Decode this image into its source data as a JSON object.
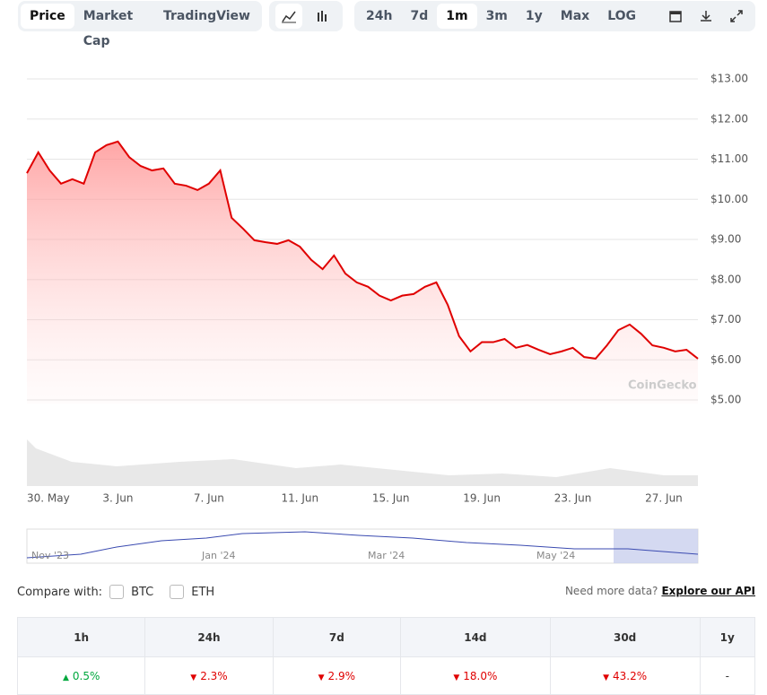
{
  "toolbar": {
    "views": [
      "Price",
      "Market Cap",
      "TradingView"
    ],
    "active_view": 0,
    "ranges": [
      "24h",
      "7d",
      "1m",
      "3m",
      "1y",
      "Max",
      "LOG"
    ],
    "active_range": 2
  },
  "chart_data": {
    "type": "line",
    "watermark": "CoinGecko",
    "categories": [
      "30. May",
      null,
      null,
      null,
      null,
      null,
      null,
      null,
      "3. Jun",
      null,
      null,
      null,
      null,
      null,
      null,
      null,
      "7. Jun",
      null,
      null,
      null,
      null,
      null,
      null,
      null,
      "11. Jun",
      null,
      null,
      null,
      null,
      null,
      null,
      null,
      "15. Jun",
      null,
      null,
      null,
      null,
      null,
      null,
      null,
      "19. Jun",
      null,
      null,
      null,
      null,
      null,
      null,
      null,
      "23. Jun",
      null,
      null,
      null,
      null,
      null,
      null,
      null,
      "27. Jun",
      null,
      null,
      null
    ],
    "values": [
      10.65,
      11.17,
      10.72,
      10.39,
      10.5,
      10.39,
      11.17,
      11.35,
      11.44,
      11.05,
      10.83,
      10.72,
      10.77,
      10.39,
      10.34,
      10.23,
      10.39,
      10.72,
      9.54,
      9.27,
      8.98,
      8.93,
      8.89,
      8.98,
      8.82,
      8.49,
      8.26,
      8.6,
      8.15,
      7.93,
      7.82,
      7.6,
      7.48,
      7.6,
      7.64,
      7.82,
      7.93,
      7.37,
      6.59,
      6.21,
      6.44,
      6.44,
      6.52,
      6.3,
      6.37,
      6.25,
      6.14,
      6.21,
      6.3,
      6.07,
      6.03,
      6.36,
      6.74,
      6.88,
      6.65,
      6.36,
      6.3,
      6.21,
      6.25,
      6.03
    ],
    "color": "#e00000",
    "ylim": [
      5,
      13
    ],
    "yticks": [
      {
        "value": 5,
        "label": "$5.00"
      },
      {
        "value": 6,
        "label": "$6.00"
      },
      {
        "value": 7,
        "label": "$7.00"
      },
      {
        "value": 8,
        "label": "$8.00"
      },
      {
        "value": 9,
        "label": "$9.00"
      },
      {
        "value": 10,
        "label": "$10.00"
      },
      {
        "value": 11,
        "label": "$11.00"
      },
      {
        "value": 12,
        "label": "$12.00"
      },
      {
        "value": 13,
        "label": "$13.00"
      }
    ],
    "grid": true
  },
  "navigator": {
    "labels": [
      "Nov '23",
      "Jan '24",
      "Mar '24",
      "May '24"
    ]
  },
  "compare": {
    "label": "Compare with:",
    "options": [
      "BTC",
      "ETH"
    ],
    "more": "Need more data?",
    "link": "Explore our API"
  },
  "table": {
    "headers": [
      "1h",
      "24h",
      "7d",
      "14d",
      "30d",
      "1y"
    ],
    "cells": [
      {
        "text": "0.5%",
        "color": "#00a83e",
        "arrow": "▲"
      },
      {
        "text": "2.3%",
        "color": "#e00000",
        "arrow": "▼"
      },
      {
        "text": "2.9%",
        "color": "#e00000",
        "arrow": "▼"
      },
      {
        "text": "18.0%",
        "color": "#e00000",
        "arrow": "▼"
      },
      {
        "text": "43.2%",
        "color": "#e00000",
        "arrow": "▼"
      },
      {
        "text": "-",
        "color": "#333",
        "arrow": null
      }
    ]
  }
}
